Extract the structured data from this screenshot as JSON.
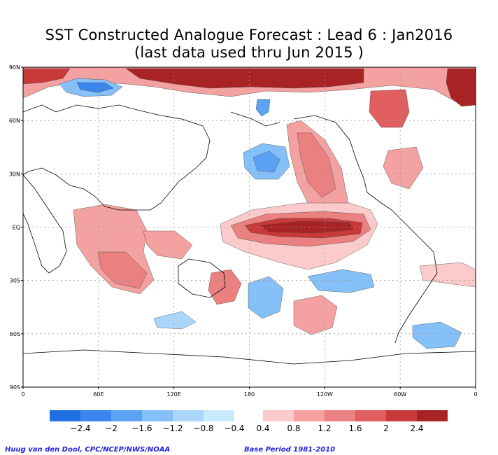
{
  "title": {
    "line1": "SST Constructed Analogue Forecast : Lead 6 : Jan2016",
    "line2": "(last data used thru Jun 2015 )"
  },
  "axes": {
    "lat_labels": [
      "90N",
      "60N",
      "30N",
      "EQ",
      "30S",
      "60S",
      "90S"
    ],
    "lon_labels": [
      "0",
      "60E",
      "120E",
      "180",
      "120W",
      "60W",
      "0"
    ]
  },
  "colorbar": {
    "neg_labels": [
      "−2.4",
      "−2",
      "−1.6",
      "−1.2",
      "−0.8",
      "−0.4"
    ],
    "pos_labels": [
      "0.4",
      "0.8",
      "1.2",
      "1.6",
      "2",
      "2.4"
    ],
    "neg_colors": [
      "#1f6fe0",
      "#3a86ee",
      "#5aa2f4",
      "#86c0f9",
      "#aad6fb",
      "#c8ecfd"
    ],
    "pos_colors": [
      "#fbcaca",
      "#f3a1a1",
      "#ea8080",
      "#e05e5e",
      "#c83a3a",
      "#a82424"
    ]
  },
  "footer": {
    "left": "Huug van den Dool, CPC/NCEP/NWS/NOAA",
    "right": "Base Period 1981-2010"
  }
}
